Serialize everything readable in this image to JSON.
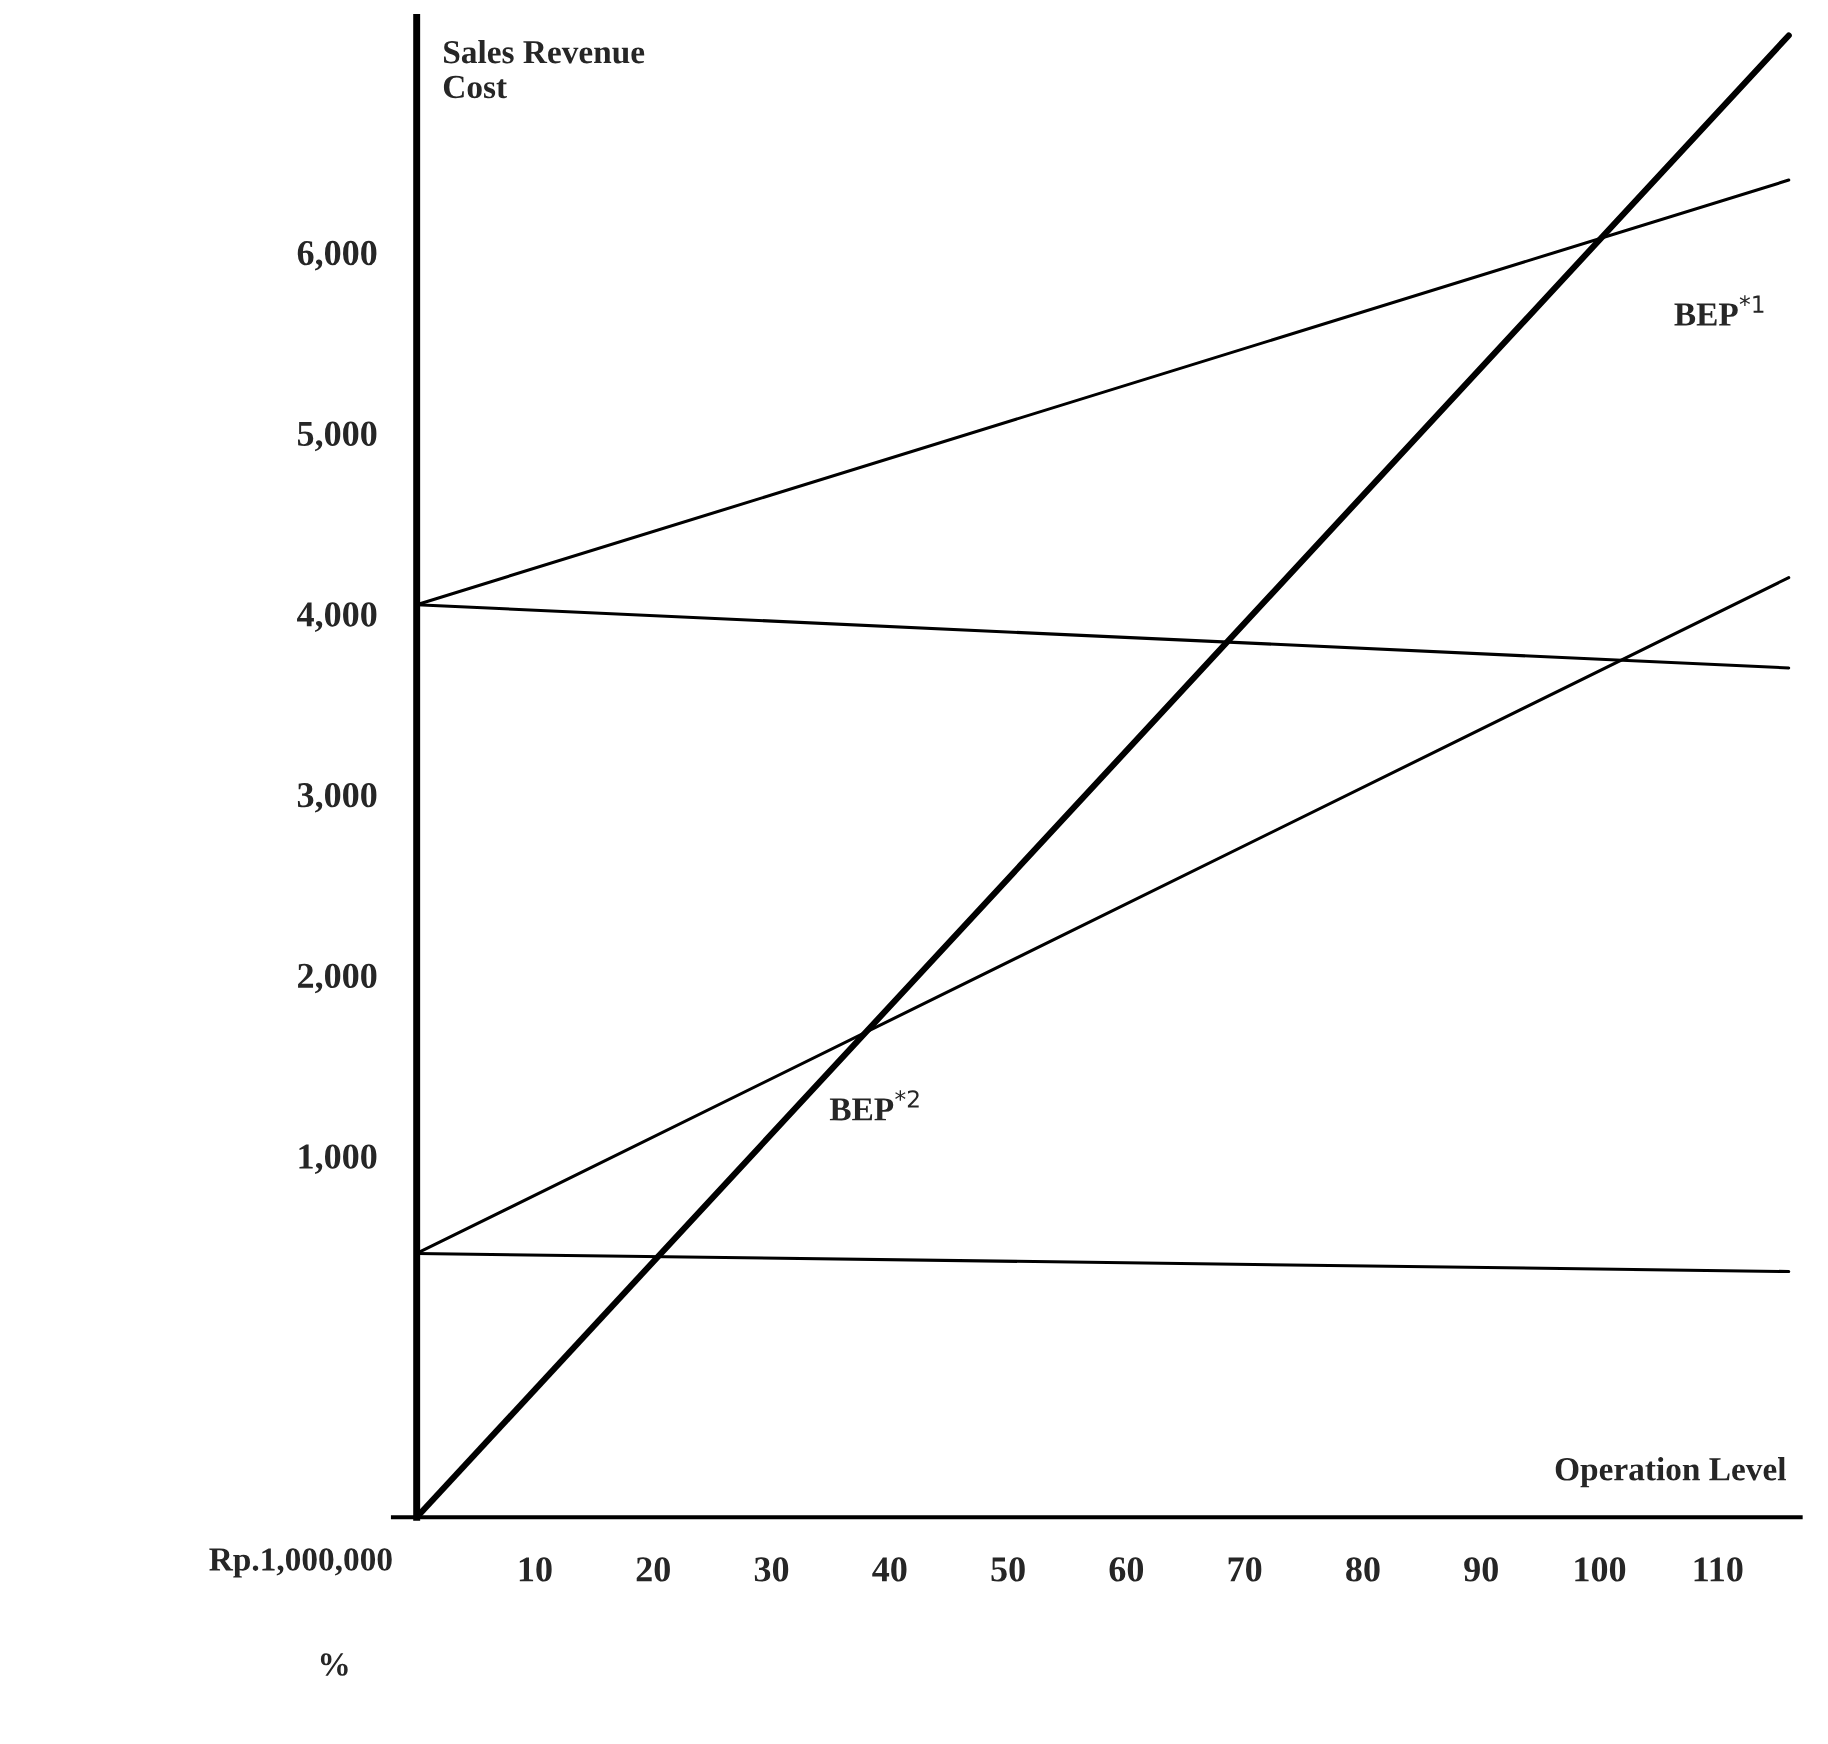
{
  "chart_data": {
    "type": "line",
    "ylabel": "Sales Revenue\nCost",
    "xlabel": "Operation Level",
    "xlim": [
      -2,
      117
    ],
    "xticks": [
      10,
      20,
      30,
      40,
      50,
      60,
      70,
      80,
      90,
      100,
      110
    ],
    "ylim": [
      -1000,
      7300
    ],
    "yticks": [
      {
        "value": 1000,
        "label": "1,000"
      },
      {
        "value": 2000,
        "label": "2,000"
      },
      {
        "value": 3000,
        "label": "3,000"
      },
      {
        "value": 4000,
        "label": "4,000"
      },
      {
        "value": 5000,
        "label": "5,000"
      },
      {
        "value": 6000,
        "label": "6,000"
      }
    ],
    "x": [
      0,
      116
    ],
    "series": [
      {
        "color": "#000000",
        "values": [
          -1000,
          7200
        ]
      },
      {
        "color": "#000000",
        "values": [
          4050,
          6400
        ]
      },
      {
        "color": "#000000",
        "values": [
          4050,
          3700
        ]
      },
      {
        "color": "#000000",
        "values": [
          460,
          4200
        ]
      },
      {
        "color": "#000000",
        "values": [
          460,
          360
        ]
      }
    ],
    "annotations": [
      "BEP$^{*1}$",
      "BEP$^{*2}$",
      "Rp.1,000,000",
      "%"
    ],
    "grid": false,
    "legend": false,
    "marker": "none",
    "line_style": "solid"
  }
}
